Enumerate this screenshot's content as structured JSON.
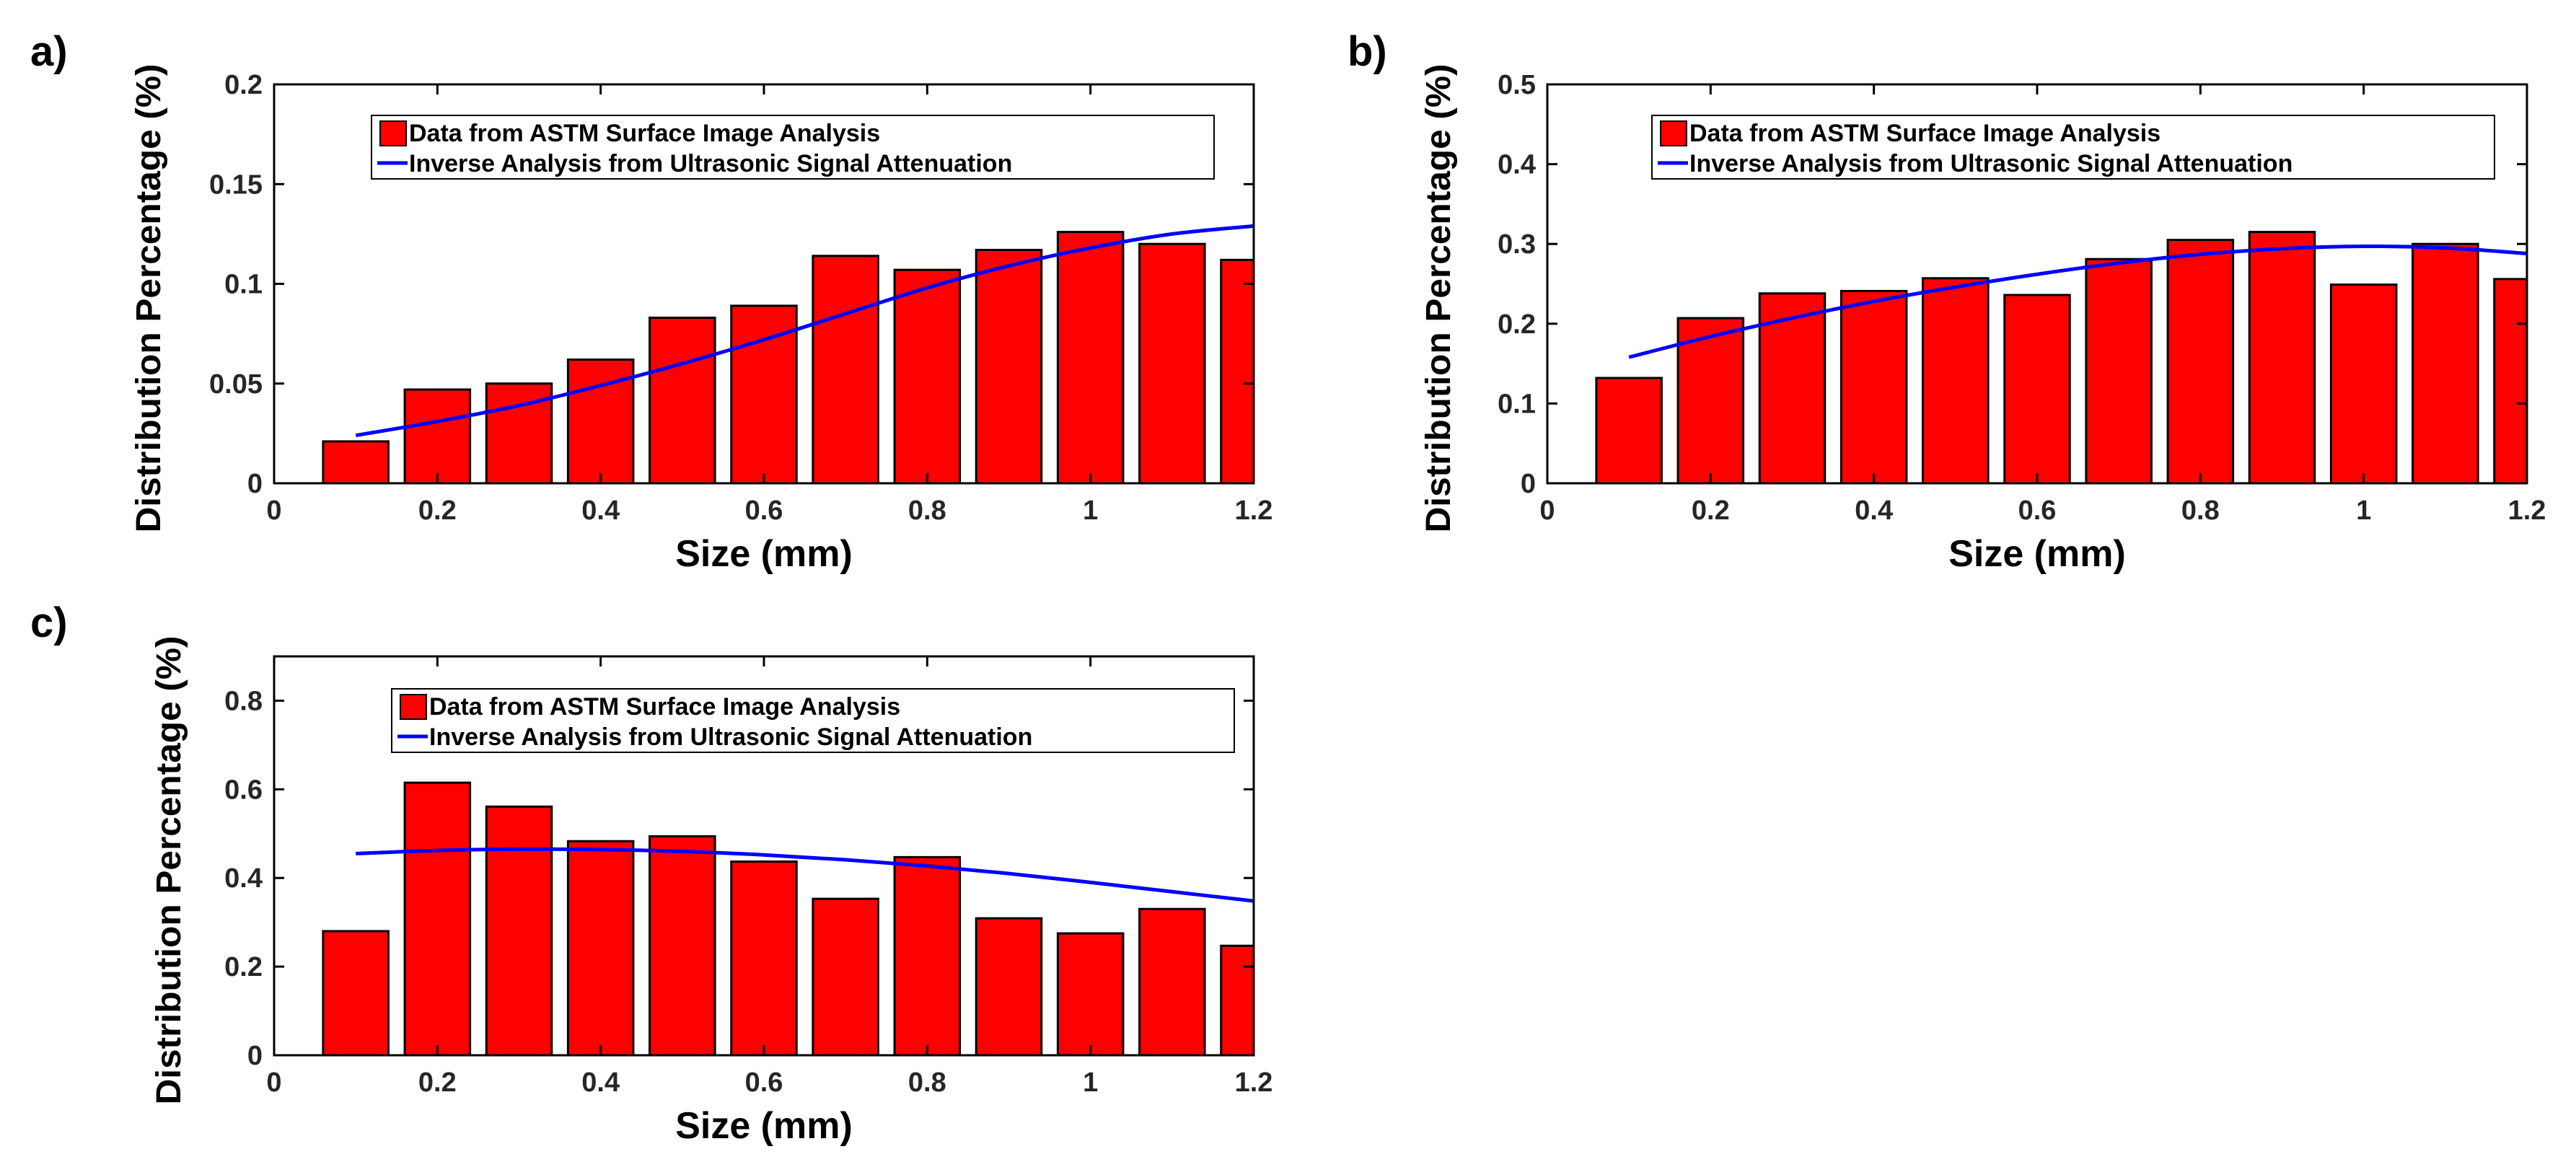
{
  "colors": {
    "bar_fill": "#ff0000",
    "bar_stroke": "#000000",
    "line": "#0000ff",
    "axis": "#000000",
    "tick_text": "#262626"
  },
  "chart_data": [
    {
      "panel_label": "a)",
      "type": "bar",
      "xlabel": "Size (mm)",
      "ylabel": "Distribution Percentage (%)",
      "xlim": [
        0,
        1.2
      ],
      "ylim": [
        0,
        0.2
      ],
      "x_ticks": [
        0,
        0.2,
        0.4,
        0.6,
        0.8,
        1,
        1.2
      ],
      "x_tick_labels": [
        "0",
        "0.2",
        "0.4",
        "0.6",
        "0.8",
        "1",
        "1.2"
      ],
      "y_ticks": [
        0,
        0.05,
        0.1,
        0.15,
        0.2
      ],
      "y_tick_labels": [
        "0",
        "0.05",
        "0.1",
        "0.15",
        "0.2"
      ],
      "bar_width": 0.08,
      "legend_position": "top-right",
      "series": [
        {
          "name": "Data from ASTM Surface Image Analysis",
          "type": "bar",
          "x": [
            0.1,
            0.2,
            0.3,
            0.4,
            0.5,
            0.6,
            0.7,
            0.8,
            0.9,
            1.0,
            1.1,
            1.2
          ],
          "values": [
            0.021,
            0.047,
            0.05,
            0.062,
            0.083,
            0.089,
            0.114,
            0.107,
            0.117,
            0.126,
            0.12,
            0.112
          ]
        },
        {
          "name": "Inverse Analysis from Ultrasonic Signal Attenuation",
          "type": "line",
          "x": [
            0.1,
            0.2,
            0.3,
            0.4,
            0.5,
            0.6,
            0.7,
            0.8,
            0.9,
            1.0,
            1.1,
            1.2
          ],
          "values": [
            0.024,
            0.031,
            0.039,
            0.049,
            0.06,
            0.072,
            0.085,
            0.098,
            0.109,
            0.118,
            0.125,
            0.129
          ]
        }
      ]
    },
    {
      "panel_label": "b)",
      "type": "bar",
      "xlabel": "Size (mm)",
      "ylabel": "Distribution Percentage (%)",
      "xlim": [
        0,
        1.2
      ],
      "ylim": [
        0,
        0.5
      ],
      "x_ticks": [
        0,
        0.2,
        0.4,
        0.6,
        0.8,
        1,
        1.2
      ],
      "x_tick_labels": [
        "0",
        "0.2",
        "0.4",
        "0.6",
        "0.8",
        "1",
        "1.2"
      ],
      "y_ticks": [
        0,
        0.1,
        0.2,
        0.3,
        0.4,
        0.5
      ],
      "y_tick_labels": [
        "0",
        "0.1",
        "0.2",
        "0.3",
        "0.4",
        "0.5"
      ],
      "bar_width": 0.08,
      "legend_position": "top-right",
      "series": [
        {
          "name": "Data from ASTM Surface Image Analysis",
          "type": "bar",
          "x": [
            0.1,
            0.2,
            0.3,
            0.4,
            0.5,
            0.6,
            0.7,
            0.8,
            0.9,
            1.0,
            1.1,
            1.2
          ],
          "values": [
            0.132,
            0.207,
            0.238,
            0.241,
            0.257,
            0.236,
            0.281,
            0.305,
            0.315,
            0.249,
            0.3,
            0.256
          ]
        },
        {
          "name": "Inverse Analysis from Ultrasonic Signal Attenuation",
          "type": "line",
          "x": [
            0.1,
            0.2,
            0.3,
            0.4,
            0.5,
            0.6,
            0.7,
            0.8,
            0.9,
            1.0,
            1.1,
            1.2
          ],
          "values": [
            0.158,
            0.184,
            0.207,
            0.228,
            0.246,
            0.262,
            0.276,
            0.287,
            0.294,
            0.297,
            0.295,
            0.288
          ]
        }
      ]
    },
    {
      "panel_label": "c)",
      "type": "bar",
      "xlabel": "Size (mm)",
      "ylabel": "Distribution Percentage (%)",
      "xlim": [
        0,
        1.2
      ],
      "ylim": [
        0,
        0.9
      ],
      "x_ticks": [
        0,
        0.2,
        0.4,
        0.6,
        0.8,
        1,
        1.2
      ],
      "x_tick_labels": [
        "0",
        "0.2",
        "0.4",
        "0.6",
        "0.8",
        "1",
        "1.2"
      ],
      "y_ticks": [
        0,
        0.2,
        0.4,
        0.6,
        0.8
      ],
      "y_tick_labels": [
        "0",
        "0.2",
        "0.4",
        "0.6",
        "0.8"
      ],
      "bar_width": 0.08,
      "legend_position": "top-right",
      "series": [
        {
          "name": "Data from ASTM Surface Image Analysis",
          "type": "bar",
          "x": [
            0.1,
            0.2,
            0.3,
            0.4,
            0.5,
            0.6,
            0.7,
            0.8,
            0.9,
            1.0,
            1.1,
            1.2
          ],
          "values": [
            0.28,
            0.615,
            0.561,
            0.483,
            0.494,
            0.437,
            0.353,
            0.447,
            0.309,
            0.275,
            0.33,
            0.247
          ]
        },
        {
          "name": "Inverse Analysis from Ultrasonic Signal Attenuation",
          "type": "line",
          "x": [
            0.1,
            0.2,
            0.3,
            0.4,
            0.5,
            0.6,
            0.7,
            0.8,
            0.9,
            1.0,
            1.1,
            1.2
          ],
          "values": [
            0.455,
            0.462,
            0.465,
            0.464,
            0.46,
            0.452,
            0.441,
            0.427,
            0.41,
            0.39,
            0.369,
            0.348
          ]
        }
      ]
    }
  ]
}
